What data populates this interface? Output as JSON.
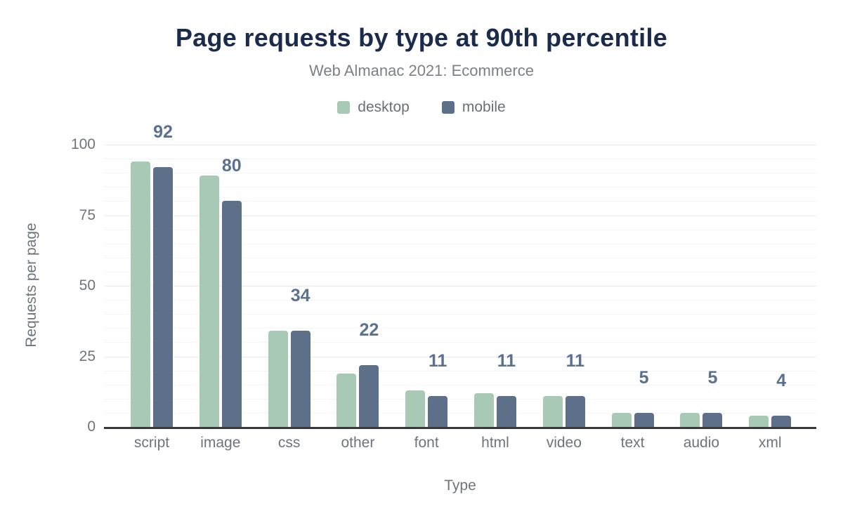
{
  "chart_data": {
    "type": "bar",
    "title": "Page requests by type at 90th percentile",
    "subtitle": "Web Almanac 2021: Ecommerce",
    "xlabel": "Type",
    "ylabel": "Requests per page",
    "categories": [
      "script",
      "image",
      "css",
      "other",
      "font",
      "html",
      "video",
      "text",
      "audio",
      "xml"
    ],
    "series": [
      {
        "name": "desktop",
        "color": "#a8c9b6",
        "values": [
          94,
          89,
          34,
          19,
          13,
          12,
          11,
          5,
          5,
          4
        ]
      },
      {
        "name": "mobile",
        "color": "#5e7089",
        "values": [
          92,
          80,
          34,
          22,
          11,
          11,
          11,
          5,
          5,
          4
        ]
      }
    ],
    "data_labels": {
      "series": "mobile",
      "values": [
        "92",
        "80",
        "34",
        "22",
        "11",
        "11",
        "11",
        "5",
        "5",
        "4"
      ],
      "color": "#5b7190"
    },
    "ylim": [
      0,
      100
    ],
    "yticks": [
      0,
      25,
      50,
      75,
      100
    ],
    "minor_grid_step": 5,
    "grid": true,
    "legend_position": "top"
  },
  "style": {
    "title_color": "#1b2b4b",
    "subtitle_color": "#7d8186",
    "tick_label_color": "#6f747b",
    "axis_title_color": "#6f747b",
    "legend_text_color": "#6b7077",
    "axis_line_color": "#37393c",
    "major_grid_color": "#e9eaea",
    "minor_grid_color": "#f5f5f5",
    "background": "#ffffff"
  }
}
